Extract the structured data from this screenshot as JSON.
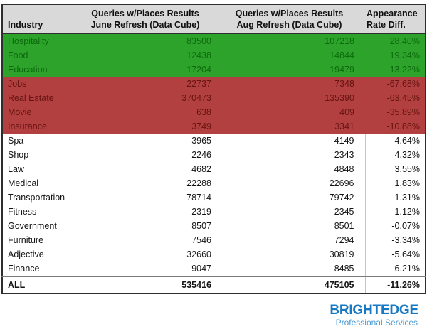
{
  "colors": {
    "header-bg": "#d9d9d9",
    "green-bg": "#2da32c",
    "green-text": "#0c6a0c",
    "red-bg": "#b24040",
    "red-text": "#661311",
    "border-dark": "#2e2e2e",
    "brand-blue": "#1878c2",
    "brand-blue-light": "#4a9bd5"
  },
  "table": {
    "headers": {
      "industry": "Industry",
      "june": "Queries w/Places Results\nJune Refresh (Data Cube)",
      "aug": "Queries w/Places Results\nAug Refresh (Data Cube)",
      "diff": "Appearance\nRate Diff."
    },
    "rows": [
      {
        "industry": "Hospitality",
        "june": "83500",
        "aug": "107218",
        "diff": "28.40%",
        "highlight": "green"
      },
      {
        "industry": "Food",
        "june": "12438",
        "aug": "14844",
        "diff": "19.34%",
        "highlight": "green"
      },
      {
        "industry": "Education",
        "june": "17204",
        "aug": "19479",
        "diff": "13.22%",
        "highlight": "green"
      },
      {
        "industry": "Jobs",
        "june": "22737",
        "aug": "7348",
        "diff": "-67.68%",
        "highlight": "red"
      },
      {
        "industry": "Real Estate",
        "june": "370473",
        "aug": "135390",
        "diff": "-63.45%",
        "highlight": "red"
      },
      {
        "industry": "Movie",
        "june": "638",
        "aug": "409",
        "diff": "-35.89%",
        "highlight": "red"
      },
      {
        "industry": "Insurance",
        "june": "3749",
        "aug": "3341",
        "diff": "-10.88%",
        "highlight": "red"
      },
      {
        "industry": "Spa",
        "june": "3965",
        "aug": "4149",
        "diff": "4.64%",
        "highlight": "none"
      },
      {
        "industry": "Shop",
        "june": "2246",
        "aug": "2343",
        "diff": "4.32%",
        "highlight": "none"
      },
      {
        "industry": "Law",
        "june": "4682",
        "aug": "4848",
        "diff": "3.55%",
        "highlight": "none"
      },
      {
        "industry": "Medical",
        "june": "22288",
        "aug": "22696",
        "diff": "1.83%",
        "highlight": "none"
      },
      {
        "industry": "Transportation",
        "june": "78714",
        "aug": "79742",
        "diff": "1.31%",
        "highlight": "none"
      },
      {
        "industry": "Fitness",
        "june": "2319",
        "aug": "2345",
        "diff": "1.12%",
        "highlight": "none"
      },
      {
        "industry": "Government",
        "june": "8507",
        "aug": "8501",
        "diff": "-0.07%",
        "highlight": "none"
      },
      {
        "industry": "Furniture",
        "june": "7546",
        "aug": "7294",
        "diff": "-3.34%",
        "highlight": "none"
      },
      {
        "industry": "Adjective",
        "june": "32660",
        "aug": "30819",
        "diff": "-5.64%",
        "highlight": "none"
      },
      {
        "industry": "Finance",
        "june": "9047",
        "aug": "8485",
        "diff": "-6.21%",
        "highlight": "none"
      }
    ],
    "total": {
      "industry": "ALL",
      "june": "535416",
      "aug": "475105",
      "diff": "-11.26%"
    }
  },
  "logo": {
    "brand": "BRIGHTEDGE",
    "tagline": "Professional Services"
  },
  "chart_data": {
    "type": "table",
    "title": "Queries with Places Results by Industry, June vs Aug Refresh (Data Cube)",
    "columns": [
      "Industry",
      "Queries w/Places Results June Refresh (Data Cube)",
      "Queries w/Places Results Aug Refresh (Data Cube)",
      "Appearance Rate Diff."
    ],
    "rows": [
      {
        "industry": "Hospitality",
        "june_queries": 83500,
        "aug_queries": 107218,
        "appearance_rate_diff_pct": 28.4,
        "highlight": "green"
      },
      {
        "industry": "Food",
        "june_queries": 12438,
        "aug_queries": 14844,
        "appearance_rate_diff_pct": 19.34,
        "highlight": "green"
      },
      {
        "industry": "Education",
        "june_queries": 17204,
        "aug_queries": 19479,
        "appearance_rate_diff_pct": 13.22,
        "highlight": "green"
      },
      {
        "industry": "Jobs",
        "june_queries": 22737,
        "aug_queries": 7348,
        "appearance_rate_diff_pct": -67.68,
        "highlight": "red"
      },
      {
        "industry": "Real Estate",
        "june_queries": 370473,
        "aug_queries": 135390,
        "appearance_rate_diff_pct": -63.45,
        "highlight": "red"
      },
      {
        "industry": "Movie",
        "june_queries": 638,
        "aug_queries": 409,
        "appearance_rate_diff_pct": -35.89,
        "highlight": "red"
      },
      {
        "industry": "Insurance",
        "june_queries": 3749,
        "aug_queries": 3341,
        "appearance_rate_diff_pct": -10.88,
        "highlight": "red"
      },
      {
        "industry": "Spa",
        "june_queries": 3965,
        "aug_queries": 4149,
        "appearance_rate_diff_pct": 4.64,
        "highlight": "none"
      },
      {
        "industry": "Shop",
        "june_queries": 2246,
        "aug_queries": 2343,
        "appearance_rate_diff_pct": 4.32,
        "highlight": "none"
      },
      {
        "industry": "Law",
        "june_queries": 4682,
        "aug_queries": 4848,
        "appearance_rate_diff_pct": 3.55,
        "highlight": "none"
      },
      {
        "industry": "Medical",
        "june_queries": 22288,
        "aug_queries": 22696,
        "appearance_rate_diff_pct": 1.83,
        "highlight": "none"
      },
      {
        "industry": "Transportation",
        "june_queries": 78714,
        "aug_queries": 79742,
        "appearance_rate_diff_pct": 1.31,
        "highlight": "none"
      },
      {
        "industry": "Fitness",
        "june_queries": 2319,
        "aug_queries": 2345,
        "appearance_rate_diff_pct": 1.12,
        "highlight": "none"
      },
      {
        "industry": "Government",
        "june_queries": 8507,
        "aug_queries": 8501,
        "appearance_rate_diff_pct": -0.07,
        "highlight": "none"
      },
      {
        "industry": "Furniture",
        "june_queries": 7546,
        "aug_queries": 7294,
        "appearance_rate_diff_pct": -3.34,
        "highlight": "none"
      },
      {
        "industry": "Adjective",
        "june_queries": 32660,
        "aug_queries": 30819,
        "appearance_rate_diff_pct": -5.64,
        "highlight": "none"
      },
      {
        "industry": "Finance",
        "june_queries": 9047,
        "aug_queries": 8485,
        "appearance_rate_diff_pct": -6.21,
        "highlight": "none"
      }
    ],
    "total_row": {
      "industry": "ALL",
      "june_queries": 535416,
      "aug_queries": 475105,
      "appearance_rate_diff_pct": -11.26
    }
  }
}
